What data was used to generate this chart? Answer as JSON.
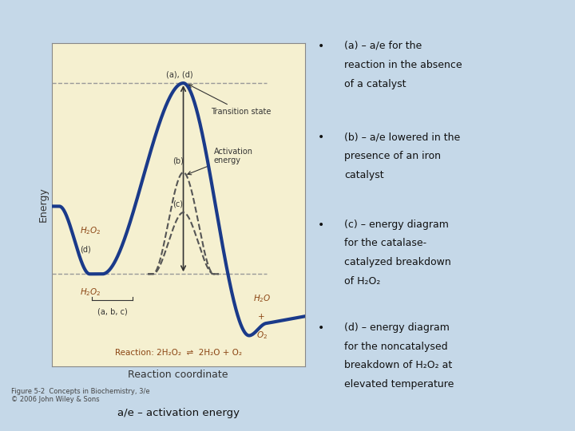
{
  "bg_color": "#c5d8e8",
  "inner_bg_color": "#f5f0d0",
  "outer_box_color": "#a8c8d8",
  "ylabel": "Energy",
  "xlabel": "Reaction coordinate",
  "reaction_text": "Reaction: 2H₂O₂  ⇌  2H₂O + O₂",
  "figure_caption": "Figure 5-2  Concepts in Biochemistry, 3/e\n© 2006 John Wiley & Sons",
  "bottom_label": "a/e – activation energy",
  "bullet_points": [
    [
      "(a) – a/e for the ",
      "reaction in the absence ",
      "of a catalyst"
    ],
    [
      "(b) – a/e lowered in the ",
      "presence of an iron ",
      "catalyst"
    ],
    [
      "(c) – energy diagram ",
      "for the catalase-",
      "catalyzed breakdown ",
      "of H₂O₂"
    ],
    [
      "(d) – energy diagram ",
      "for the noncatalysed ",
      "breakdown of H₂O₂ at ",
      "elevated temperature"
    ]
  ],
  "main_curve_color": "#1a3a8a",
  "dashed_curve_color": "#555555",
  "label_color": "#8b4513",
  "annotation_color": "#333333",
  "dashed_line_color": "#999999",
  "arrow_color": "#333333",
  "text_color": "#111111"
}
